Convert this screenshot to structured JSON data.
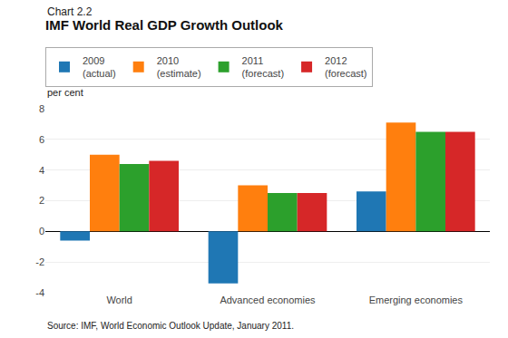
{
  "chart_data": {
    "type": "bar",
    "title": "IMF World Real GDP Growth Outlook",
    "ylabel": "per cent",
    "annotations": [
      "Chart 2.2",
      "Source: IMF, World Economic Outlook Update, January 2011."
    ],
    "categories": [
      "World",
      "Advanced economies",
      "Emerging economies"
    ],
    "series": [
      {
        "name": "2009\n(actual)",
        "values": [
          -0.6,
          -3.4,
          2.6
        ]
      },
      {
        "name": "2010\n(estimate)",
        "values": [
          5.0,
          3.0,
          7.1
        ]
      },
      {
        "name": "2011\n(forecast)",
        "values": [
          4.4,
          2.5,
          6.5
        ]
      },
      {
        "name": "2012\n(forecast)",
        "values": [
          4.6,
          2.5,
          6.5
        ]
      }
    ],
    "ylim": [
      -4,
      8
    ],
    "yticks": [
      -4,
      -2,
      0,
      2,
      4,
      6,
      8
    ],
    "grid": true,
    "legend": "top"
  }
}
